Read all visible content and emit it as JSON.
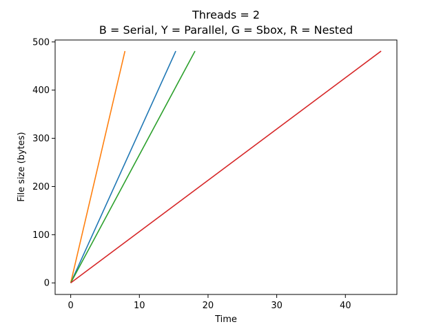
{
  "chart_data": {
    "type": "line",
    "title": "Threads = 2",
    "subtitle": "B = Serial, Y = Parallel, G = Sbox, R = Nested",
    "xlabel": "Time",
    "ylabel": "File size (bytes)",
    "xlim": [
      -2.27,
      47.5
    ],
    "ylim": [
      -24,
      504
    ],
    "xticks": [
      0,
      10,
      20,
      30,
      40
    ],
    "yticks": [
      0,
      100,
      200,
      300,
      400,
      500
    ],
    "grid": false,
    "series": [
      {
        "color": "#1f77b4",
        "x": [
          0,
          15.3
        ],
        "y": [
          0,
          481
        ]
      },
      {
        "color": "#ff7f0e",
        "x": [
          0,
          7.9
        ],
        "y": [
          0,
          481
        ]
      },
      {
        "color": "#2ca02c",
        "x": [
          0,
          18.1
        ],
        "y": [
          0,
          481
        ]
      },
      {
        "color": "#d62728",
        "x": [
          0,
          45.2
        ],
        "y": [
          0,
          481
        ]
      }
    ]
  }
}
